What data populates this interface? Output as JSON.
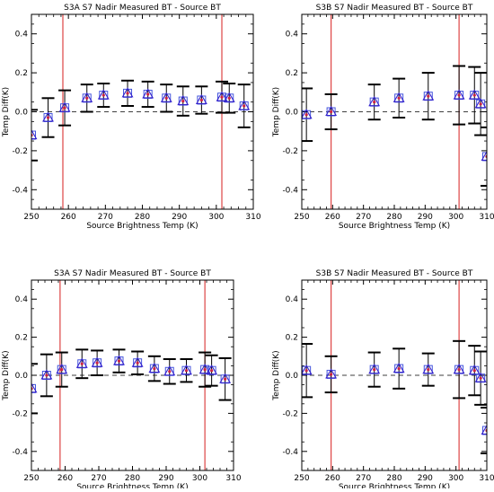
{
  "chart_data": [
    {
      "type": "scatter",
      "title": "S3A S7 Nadir Measured BT - Source BT",
      "xlabel": "Source Brightness Temp (K)",
      "ylabel": "Temp Diff(K)",
      "xlim": [
        250,
        310
      ],
      "ylim": [
        -0.5,
        0.5
      ],
      "x_ticks": [
        "250",
        "260",
        "270",
        "280",
        "290",
        "300",
        "310"
      ],
      "y_ticks": [
        "-0.4",
        "-0.2",
        "0.0",
        "0.2",
        "0.4"
      ],
      "ref_lines_x": [
        258.5,
        301.5
      ],
      "zero_line": 0,
      "grid": false,
      "marker": "square-triangle",
      "colors": {
        "square": "#4455dd",
        "triangle": "#3322cc",
        "dot": "#cc2244",
        "error_bar": "#000000",
        "ref_line": "#dd4444"
      },
      "points": [
        {
          "x": 250.0,
          "y": -0.12,
          "err": 0.13
        },
        {
          "x": 254.5,
          "y": -0.03,
          "err": 0.1
        },
        {
          "x": 259.0,
          "y": 0.02,
          "err": 0.09
        },
        {
          "x": 265.0,
          "y": 0.07,
          "err": 0.07
        },
        {
          "x": 269.5,
          "y": 0.085,
          "err": 0.06
        },
        {
          "x": 276.0,
          "y": 0.095,
          "err": 0.065
        },
        {
          "x": 281.5,
          "y": 0.09,
          "err": 0.065
        },
        {
          "x": 286.5,
          "y": 0.07,
          "err": 0.07
        },
        {
          "x": 291.0,
          "y": 0.055,
          "err": 0.075
        },
        {
          "x": 296.0,
          "y": 0.06,
          "err": 0.07
        },
        {
          "x": 301.5,
          "y": 0.075,
          "err": 0.08
        },
        {
          "x": 303.5,
          "y": 0.07,
          "err": 0.075
        },
        {
          "x": 307.5,
          "y": 0.03,
          "err": 0.11
        }
      ]
    },
    {
      "type": "scatter",
      "title": "S3B S7 Nadir Measured BT - Source BT",
      "xlabel": "Source Brightness Temp (K)",
      "ylabel": "Temp Diff(K)",
      "xlim": [
        250,
        310
      ],
      "ylim": [
        -0.5,
        0.5
      ],
      "x_ticks": [
        "250",
        "260",
        "270",
        "280",
        "290",
        "300",
        "310"
      ],
      "y_ticks": [
        "-0.4",
        "-0.2",
        "0.0",
        "0.2",
        "0.4"
      ],
      "ref_lines_x": [
        259.5,
        301.0
      ],
      "zero_line": 0,
      "grid": false,
      "marker": "square-triangle",
      "colors": {
        "square": "#4455dd",
        "triangle": "#3322cc",
        "dot": "#cc2244",
        "error_bar": "#000000",
        "ref_line": "#dd4444"
      },
      "points": [
        {
          "x": 251.5,
          "y": -0.015,
          "err": 0.135
        },
        {
          "x": 259.5,
          "y": 0.0,
          "err": 0.09
        },
        {
          "x": 273.5,
          "y": 0.05,
          "err": 0.09
        },
        {
          "x": 281.5,
          "y": 0.07,
          "err": 0.1
        },
        {
          "x": 291.0,
          "y": 0.08,
          "err": 0.12
        },
        {
          "x": 301.0,
          "y": 0.085,
          "err": 0.15
        },
        {
          "x": 306.0,
          "y": 0.085,
          "err": 0.145
        },
        {
          "x": 308.0,
          "y": 0.04,
          "err": 0.16
        },
        {
          "x": 310.0,
          "y": -0.23,
          "err": 0.15
        }
      ]
    },
    {
      "type": "scatter",
      "title": "S3A S7 Nadir Measured BT - Source BT",
      "xlabel": "Source Brightness Temp (K)",
      "ylabel": "Temp Diff(K)",
      "xlim": [
        250,
        310
      ],
      "ylim": [
        -0.5,
        0.5
      ],
      "x_ticks": [
        "250",
        "260",
        "270",
        "280",
        "290",
        "300",
        "310"
      ],
      "y_ticks": [
        "-0.4",
        "-0.2",
        "0.0",
        "0.2",
        "0.4"
      ],
      "ref_lines_x": [
        258.5,
        301.5
      ],
      "zero_line": 0,
      "grid": false,
      "marker": "square-triangle",
      "colors": {
        "square": "#4455dd",
        "triangle": "#3322cc",
        "dot": "#cc2244",
        "error_bar": "#000000",
        "ref_line": "#dd4444"
      },
      "points": [
        {
          "x": 250.0,
          "y": -0.07,
          "err": 0.13
        },
        {
          "x": 254.5,
          "y": 0.0,
          "err": 0.11
        },
        {
          "x": 259.0,
          "y": 0.03,
          "err": 0.09
        },
        {
          "x": 265.0,
          "y": 0.06,
          "err": 0.075
        },
        {
          "x": 269.5,
          "y": 0.065,
          "err": 0.065
        },
        {
          "x": 276.0,
          "y": 0.075,
          "err": 0.06
        },
        {
          "x": 281.5,
          "y": 0.065,
          "err": 0.06
        },
        {
          "x": 286.5,
          "y": 0.035,
          "err": 0.065
        },
        {
          "x": 291.0,
          "y": 0.02,
          "err": 0.065
        },
        {
          "x": 296.0,
          "y": 0.025,
          "err": 0.06
        },
        {
          "x": 301.5,
          "y": 0.03,
          "err": 0.09
        },
        {
          "x": 303.5,
          "y": 0.025,
          "err": 0.08
        },
        {
          "x": 307.5,
          "y": -0.02,
          "err": 0.11
        }
      ]
    },
    {
      "type": "scatter",
      "title": "S3B S7 Nadir Measured BT - Source BT",
      "xlabel": "Source Brightness Temp (K)",
      "ylabel": "Temp Diff(K)",
      "xlim": [
        250,
        310
      ],
      "ylim": [
        -0.5,
        0.5
      ],
      "x_ticks": [
        "250",
        "260",
        "270",
        "280",
        "290",
        "300",
        "310"
      ],
      "y_ticks": [
        "-0.4",
        "-0.2",
        "0.0",
        "0.2",
        "0.4"
      ],
      "ref_lines_x": [
        259.5,
        301.0
      ],
      "zero_line": 0,
      "grid": false,
      "marker": "square-triangle",
      "colors": {
        "square": "#4455dd",
        "triangle": "#3322cc",
        "dot": "#cc2244",
        "error_bar": "#000000",
        "ref_line": "#dd4444"
      },
      "points": [
        {
          "x": 251.5,
          "y": 0.025,
          "err": 0.14
        },
        {
          "x": 259.5,
          "y": 0.005,
          "err": 0.095
        },
        {
          "x": 273.5,
          "y": 0.03,
          "err": 0.09
        },
        {
          "x": 281.5,
          "y": 0.035,
          "err": 0.105
        },
        {
          "x": 291.0,
          "y": 0.03,
          "err": 0.085
        },
        {
          "x": 301.0,
          "y": 0.03,
          "err": 0.15
        },
        {
          "x": 306.0,
          "y": 0.025,
          "err": 0.13
        },
        {
          "x": 308.0,
          "y": -0.015,
          "err": 0.14
        },
        {
          "x": 310.0,
          "y": -0.29,
          "err": 0.12
        }
      ]
    }
  ]
}
